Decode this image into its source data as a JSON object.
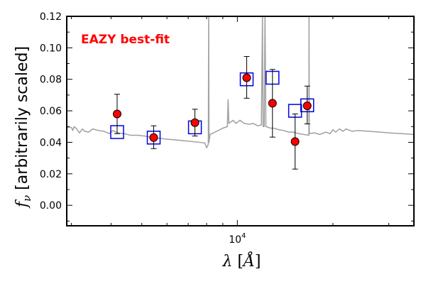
{
  "chart_data": {
    "type": "scatter",
    "title": "",
    "xlabel": "λ [Å]",
    "ylabel": "f_ν [arbitrarily scaled]",
    "xscale": "log",
    "xlim": [
      2900,
      36000
    ],
    "ylim": [
      -0.013,
      0.12
    ],
    "grid": false,
    "x_tick_labels": [
      {
        "value": 10000,
        "label": "10^4"
      }
    ],
    "y_tick_labels": [
      {
        "value": 0.0,
        "label": "0.00"
      },
      {
        "value": 0.02,
        "label": "0.02"
      },
      {
        "value": 0.04,
        "label": "0.04"
      },
      {
        "value": 0.06,
        "label": "0.06"
      },
      {
        "value": 0.08,
        "label": "0.08"
      },
      {
        "value": 0.1,
        "label": "0.10"
      },
      {
        "value": 0.12,
        "label": "0.12"
      }
    ],
    "annotation": {
      "text": "EAZY best-fit",
      "color": "#ff0000"
    },
    "colors": {
      "spectrum": "#a0a0a0",
      "model_box": "#0000dd",
      "observed_fill": "#ff0000",
      "observed_edge": "#000000",
      "errorbar": "#000000"
    },
    "series": [
      {
        "kind": "spectrum",
        "points": [
          [
            2900,
            0.0495
          ],
          [
            3000,
            0.0495
          ],
          [
            3030,
            0.0475
          ],
          [
            3060,
            0.05
          ],
          [
            3100,
            0.049
          ],
          [
            3180,
            0.046
          ],
          [
            3250,
            0.0485
          ],
          [
            3300,
            0.047
          ],
          [
            3400,
            0.0465
          ],
          [
            3500,
            0.0485
          ],
          [
            3650,
            0.0475
          ],
          [
            3800,
            0.047
          ],
          [
            3950,
            0.0455
          ],
          [
            4050,
            0.0475
          ],
          [
            4200,
            0.046
          ],
          [
            4400,
            0.0455
          ],
          [
            4600,
            0.0445
          ],
          [
            4850,
            0.0445
          ],
          [
            5100,
            0.044
          ],
          [
            5400,
            0.043
          ],
          [
            5700,
            0.0425
          ],
          [
            6000,
            0.042
          ],
          [
            6400,
            0.0415
          ],
          [
            6800,
            0.041
          ],
          [
            7200,
            0.0405
          ],
          [
            7600,
            0.04
          ],
          [
            7900,
            0.0395
          ],
          [
            8000,
            0.0365
          ],
          [
            8050,
            0.0375
          ],
          [
            8100,
            0.039
          ],
          [
            8120,
            0.12
          ],
          [
            8140,
            0.04
          ],
          [
            8200,
            0.045
          ],
          [
            8400,
            0.046
          ],
          [
            8700,
            0.0475
          ],
          [
            9000,
            0.049
          ],
          [
            9300,
            0.05
          ],
          [
            9350,
            0.067
          ],
          [
            9400,
            0.052
          ],
          [
            9700,
            0.054
          ],
          [
            9900,
            0.052
          ],
          [
            10200,
            0.054
          ],
          [
            10500,
            0.052
          ],
          [
            10900,
            0.0515
          ],
          [
            11200,
            0.052
          ],
          [
            11600,
            0.0505
          ],
          [
            11900,
            0.051
          ],
          [
            12000,
            0.12
          ],
          [
            12050,
            0.05
          ],
          [
            12150,
            0.05
          ],
          [
            12220,
            0.12
          ],
          [
            12300,
            0.05
          ],
          [
            12700,
            0.049
          ],
          [
            13000,
            0.049
          ],
          [
            13500,
            0.048
          ],
          [
            14000,
            0.0475
          ],
          [
            14500,
            0.0465
          ],
          [
            15000,
            0.0465
          ],
          [
            15600,
            0.0455
          ],
          [
            16200,
            0.045
          ],
          [
            16800,
            0.0445
          ],
          [
            16820,
            0.12
          ],
          [
            16850,
            0.0455
          ],
          [
            17500,
            0.046
          ],
          [
            18200,
            0.045
          ],
          [
            19000,
            0.0465
          ],
          [
            19600,
            0.0455
          ],
          [
            20000,
            0.048
          ],
          [
            20400,
            0.0465
          ],
          [
            21000,
            0.0485
          ],
          [
            21500,
            0.047
          ],
          [
            22000,
            0.0485
          ],
          [
            23000,
            0.047
          ],
          [
            24000,
            0.0475
          ],
          [
            26000,
            0.047
          ],
          [
            28000,
            0.0465
          ],
          [
            30000,
            0.046
          ],
          [
            33000,
            0.0455
          ],
          [
            36000,
            0.045
          ]
        ]
      },
      {
        "kind": "model_photometry",
        "points": [
          {
            "x": 4180,
            "y": 0.0465
          },
          {
            "x": 5450,
            "y": 0.043
          },
          {
            "x": 7350,
            "y": 0.0495
          },
          {
            "x": 10700,
            "y": 0.08
          },
          {
            "x": 12900,
            "y": 0.081
          },
          {
            "x": 15200,
            "y": 0.06
          },
          {
            "x": 16600,
            "y": 0.0635
          }
        ]
      },
      {
        "kind": "observed_photometry",
        "points": [
          {
            "x": 4180,
            "y": 0.058,
            "err_low": 0.0125,
            "err_high": 0.0125
          },
          {
            "x": 5450,
            "y": 0.043,
            "err_low": 0.007,
            "err_high": 0.0075
          },
          {
            "x": 7350,
            "y": 0.0525,
            "err_low": 0.0085,
            "err_high": 0.0085
          },
          {
            "x": 10700,
            "y": 0.081,
            "err_low": 0.013,
            "err_high": 0.0135
          },
          {
            "x": 12900,
            "y": 0.0648,
            "err_low": 0.0215,
            "err_high": 0.0215
          },
          {
            "x": 15200,
            "y": 0.0405,
            "err_low": 0.0175,
            "err_high": 0.0175
          },
          {
            "x": 16600,
            "y": 0.0632,
            "err_low": 0.0115,
            "err_high": 0.0125
          }
        ]
      }
    ]
  }
}
